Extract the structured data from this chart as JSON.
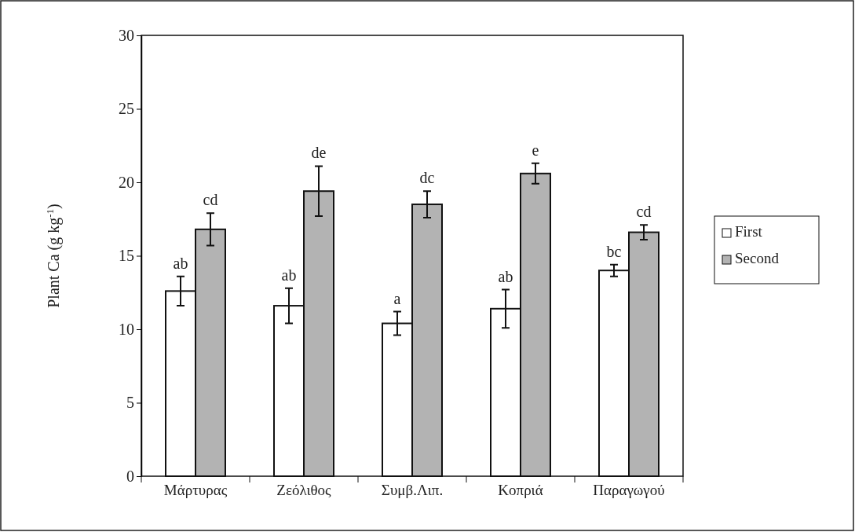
{
  "chart_data": {
    "type": "bar",
    "ylabel": "Plant Ca (g kg$^{-1}$)",
    "categories": [
      "Μάρτυρας",
      "Ζεόλιθος",
      "Συμβ.Λιπ.",
      "Κοπριά",
      "Παραγωγού"
    ],
    "series": [
      {
        "name": "First",
        "color": "#ffffff",
        "values": [
          12.6,
          11.6,
          10.4,
          11.4,
          14.0
        ],
        "errors": [
          1.0,
          1.2,
          0.8,
          1.3,
          0.4
        ],
        "value_labels": [
          "ab",
          "ab",
          "a",
          "ab",
          "bc"
        ]
      },
      {
        "name": "Second",
        "color": "#b3b3b3",
        "values": [
          16.8,
          19.4,
          18.5,
          20.6,
          16.6
        ],
        "errors": [
          1.1,
          1.7,
          0.9,
          0.7,
          0.5
        ],
        "value_labels": [
          "cd",
          "de",
          "dc",
          "e",
          "cd"
        ]
      }
    ],
    "ylim": [
      0,
      30
    ],
    "yticks": [
      0,
      5,
      10,
      15,
      20,
      25,
      30
    ],
    "grid": false,
    "legend": "right"
  }
}
